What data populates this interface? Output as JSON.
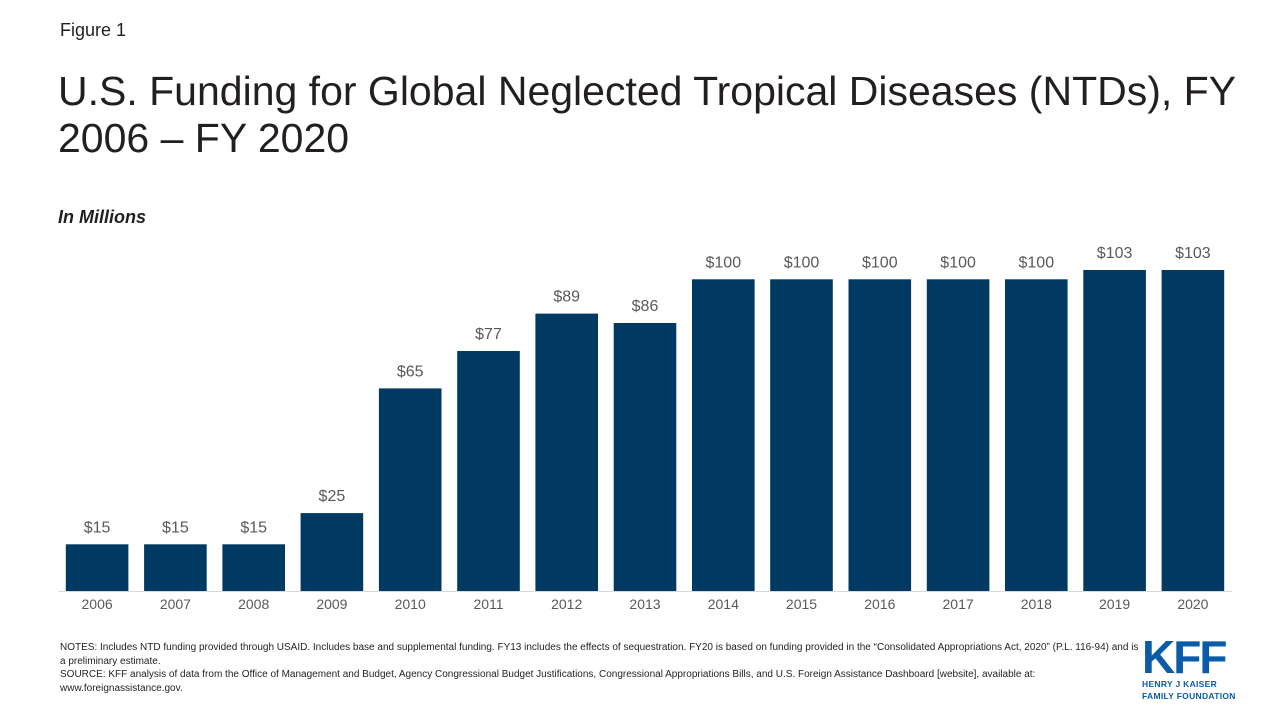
{
  "figure_label": "Figure 1",
  "chart_data": {
    "type": "bar",
    "title": "U.S. Funding for Global Neglected Tropical Diseases (NTDs), FY 2006 – FY 2020",
    "units_label": "In Millions",
    "categories": [
      "2006",
      "2007",
      "2008",
      "2009",
      "2010",
      "2011",
      "2012",
      "2013",
      "2014",
      "2015",
      "2016",
      "2017",
      "2018",
      "2019",
      "2020"
    ],
    "values": [
      15,
      15,
      15,
      25,
      65,
      77,
      89,
      86,
      100,
      100,
      100,
      100,
      100,
      103,
      103
    ],
    "data_labels": [
      "$15",
      "$15",
      "$15",
      "$25",
      "$65",
      "$77",
      "$89",
      "$86",
      "$100",
      "$100",
      "$100",
      "$100",
      "$100",
      "$103",
      "$103"
    ],
    "xlabel": "",
    "ylabel": "",
    "ylim": [
      0,
      103
    ],
    "grid": false,
    "legend": "none",
    "bar_color": "#003a63"
  },
  "notes": {
    "line1": "NOTES: Includes NTD funding provided through USAID. Includes base and supplemental funding. FY13 includes the effects of sequestration. FY20 is based on funding provided in the “Consolidated Appropriations Act, 2020” (P.L. 116-94) and is a preliminary estimate.",
    "line2": "SOURCE: KFF analysis of data from the Office of Management and Budget, Agency Congressional Budget Justifications, Congressional Appropriations Bills, and U.S. Foreign Assistance Dashboard [website], available at: www.foreignassistance.gov."
  },
  "logo": {
    "mark": "KFF",
    "line1": "HENRY J KAISER",
    "line2": "FAMILY FOUNDATION",
    "color": "#0b5ca8"
  }
}
